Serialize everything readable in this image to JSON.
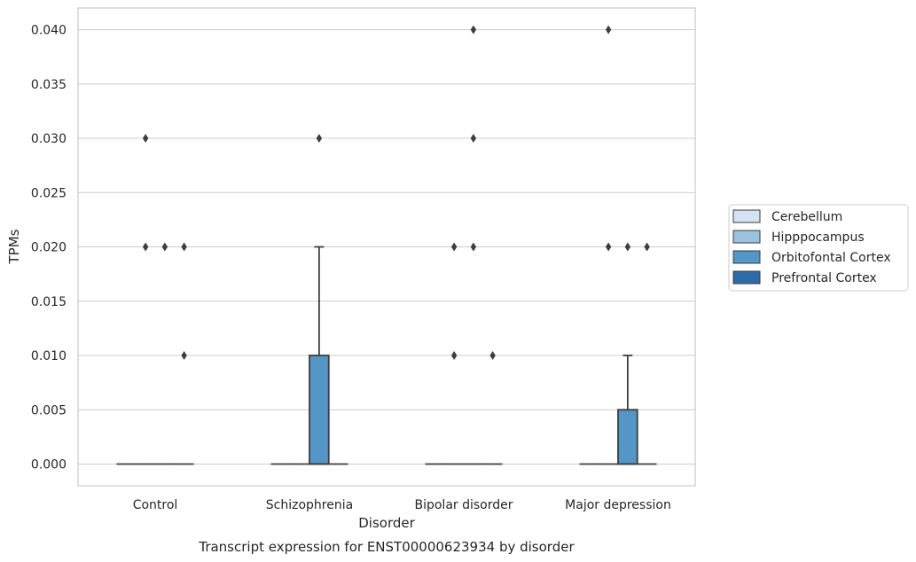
{
  "chart_data": {
    "type": "box",
    "title": "",
    "caption": "Transcript expression for ENST00000623934 by disorder",
    "xlabel": "Disorder",
    "ylabel": "TPMs",
    "categories": [
      "Control",
      "Schizophrenia",
      "Bipolar disorder",
      "Major depression"
    ],
    "ylim": [
      -0.002,
      0.042
    ],
    "yticks": [
      "0.000",
      "0.005",
      "0.010",
      "0.015",
      "0.020",
      "0.025",
      "0.030",
      "0.035",
      "0.040"
    ],
    "grid": true,
    "legend_position": "right",
    "series": [
      {
        "name": "Cerebellum",
        "color": "#d4e3f1",
        "boxes": [
          {
            "category": "Control",
            "q1": 0,
            "median": 0,
            "q3": 0,
            "whisker_low": 0,
            "whisker_high": 0,
            "outliers": []
          },
          {
            "category": "Schizophrenia",
            "q1": 0,
            "median": 0,
            "q3": 0,
            "whisker_low": 0,
            "whisker_high": 0,
            "outliers": []
          },
          {
            "category": "Bipolar disorder",
            "q1": 0,
            "median": 0,
            "q3": 0,
            "whisker_low": 0,
            "whisker_high": 0,
            "outliers": []
          },
          {
            "category": "Major depression",
            "q1": 0,
            "median": 0,
            "q3": 0,
            "whisker_low": 0,
            "whisker_high": 0,
            "outliers": []
          }
        ]
      },
      {
        "name": "Hipppocampus",
        "color": "#9ac2de",
        "boxes": [
          {
            "category": "Control",
            "q1": 0,
            "median": 0,
            "q3": 0,
            "whisker_low": 0,
            "whisker_high": 0,
            "outliers": [
              0.03,
              0.02
            ]
          },
          {
            "category": "Schizophrenia",
            "q1": 0,
            "median": 0,
            "q3": 0,
            "whisker_low": 0,
            "whisker_high": 0,
            "outliers": []
          },
          {
            "category": "Bipolar disorder",
            "q1": 0,
            "median": 0,
            "q3": 0,
            "whisker_low": 0,
            "whisker_high": 0,
            "outliers": [
              0.02,
              0.01
            ]
          },
          {
            "category": "Major depression",
            "q1": 0,
            "median": 0,
            "q3": 0,
            "whisker_low": 0,
            "whisker_high": 0,
            "outliers": [
              0.04,
              0.02
            ]
          }
        ]
      },
      {
        "name": "Orbitofontal Cortex",
        "color": "#5496c6",
        "boxes": [
          {
            "category": "Control",
            "q1": 0,
            "median": 0,
            "q3": 0,
            "whisker_low": 0,
            "whisker_high": 0,
            "outliers": [
              0.02
            ]
          },
          {
            "category": "Schizophrenia",
            "q1": 0,
            "median": 0,
            "q3": 0.01,
            "whisker_low": 0,
            "whisker_high": 0.02,
            "outliers": [
              0.03
            ]
          },
          {
            "category": "Bipolar disorder",
            "q1": 0,
            "median": 0,
            "q3": 0,
            "whisker_low": 0,
            "whisker_high": 0,
            "outliers": [
              0.04,
              0.03,
              0.02
            ]
          },
          {
            "category": "Major depression",
            "q1": 0,
            "median": 0,
            "q3": 0.005,
            "whisker_low": 0,
            "whisker_high": 0.01,
            "outliers": [
              0.02
            ]
          }
        ]
      },
      {
        "name": "Prefrontal Cortex",
        "color": "#2c6ba7",
        "boxes": [
          {
            "category": "Control",
            "q1": 0,
            "median": 0,
            "q3": 0,
            "whisker_low": 0,
            "whisker_high": 0,
            "outliers": [
              0.02,
              0.01
            ]
          },
          {
            "category": "Schizophrenia",
            "q1": 0,
            "median": 0,
            "q3": 0,
            "whisker_low": 0,
            "whisker_high": 0,
            "outliers": []
          },
          {
            "category": "Bipolar disorder",
            "q1": 0,
            "median": 0,
            "q3": 0,
            "whisker_low": 0,
            "whisker_high": 0,
            "outliers": [
              0.01
            ]
          },
          {
            "category": "Major depression",
            "q1": 0,
            "median": 0,
            "q3": 0,
            "whisker_low": 0,
            "whisker_high": 0,
            "outliers": [
              0.02
            ]
          }
        ]
      }
    ]
  }
}
